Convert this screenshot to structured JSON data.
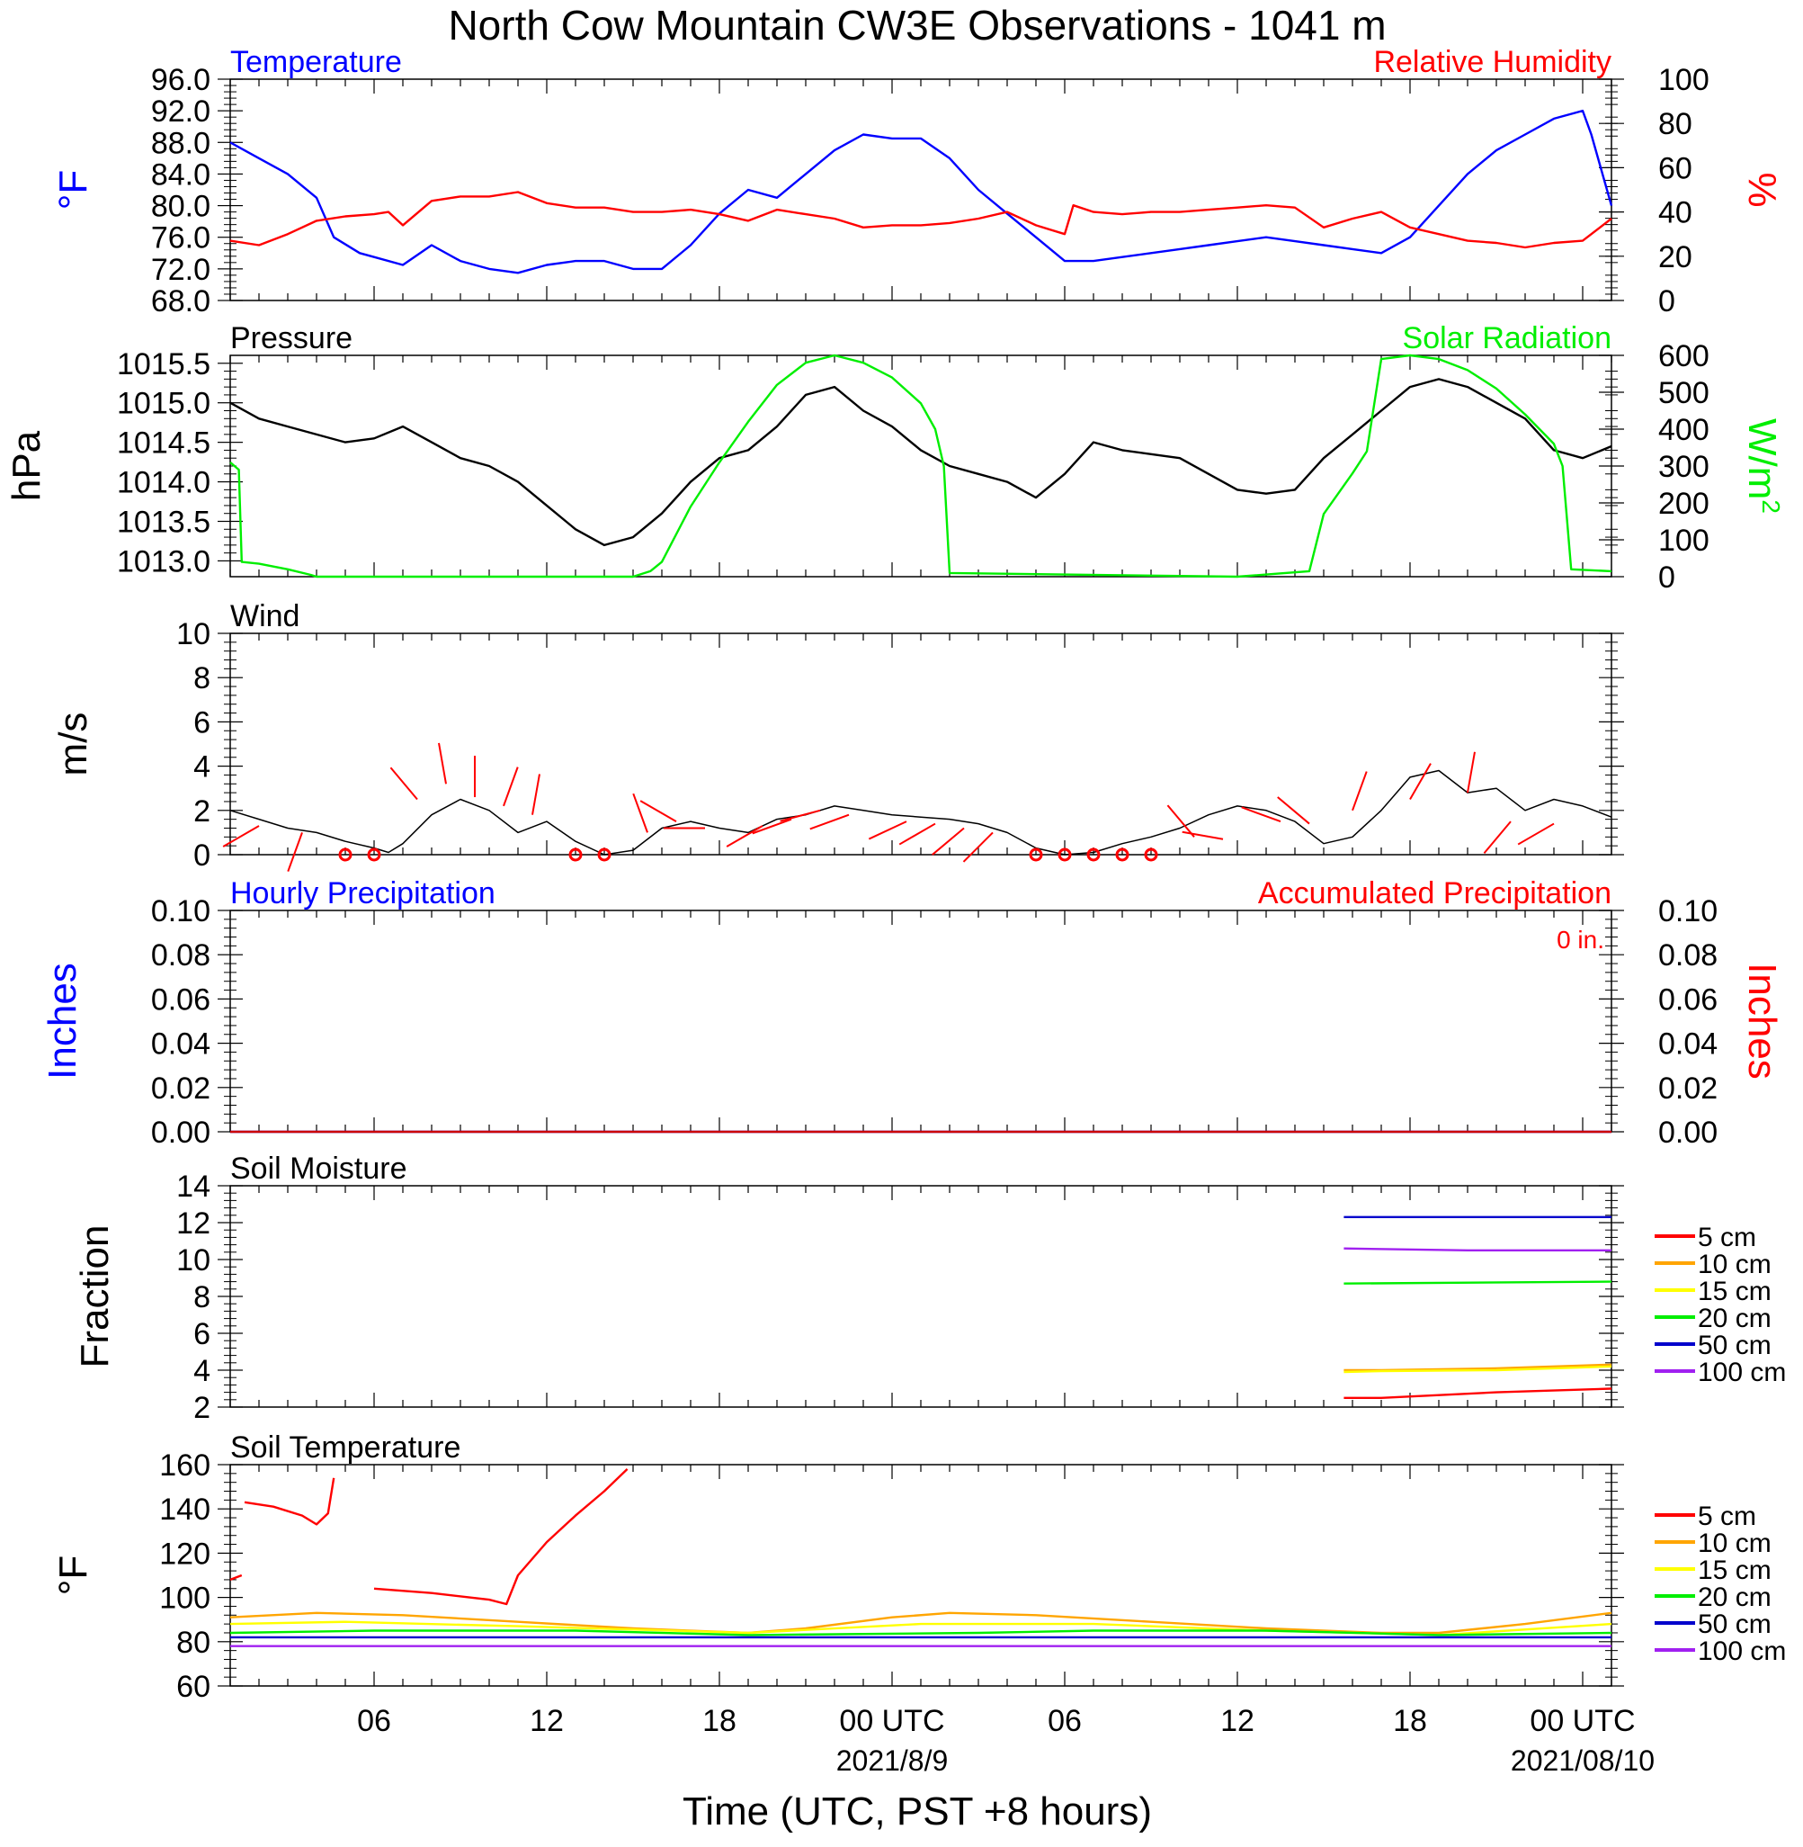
{
  "title": "North Cow Mountain CW3E Observations - 1041 m",
  "x_axis": {
    "label": "Time (UTC, PST +8 hours)",
    "range_hours": [
      0,
      48
    ],
    "major_tick_labels": [
      {
        "hour": 5,
        "label": "06",
        "date": ""
      },
      {
        "hour": 11,
        "label": "12",
        "date": ""
      },
      {
        "hour": 17,
        "label": "18",
        "date": ""
      },
      {
        "hour": 23,
        "label": "00 UTC",
        "date": "2021/8/9"
      },
      {
        "hour": 29,
        "label": "06",
        "date": ""
      },
      {
        "hour": 35,
        "label": "12",
        "date": ""
      },
      {
        "hour": 41,
        "label": "18",
        "date": ""
      },
      {
        "hour": 47,
        "label": "00 UTC",
        "date": "2021/08/10"
      }
    ]
  },
  "colors": {
    "blue": "#0000ff",
    "red": "#ff0000",
    "green": "#00ee00",
    "black": "#000000",
    "orange": "#ffa500",
    "yellow": "#ffff00",
    "navy": "#0000cc",
    "purple": "#a020f0"
  },
  "chart_data": [
    {
      "id": "temp_rh",
      "type": "line",
      "left_title": "Temperature",
      "right_title": "Relative Humidity",
      "left_ylabel": "°F",
      "right_ylabel": "%",
      "left_ylim": [
        68,
        96
      ],
      "left_ticks": [
        "68.0",
        "72.0",
        "76.0",
        "80.0",
        "84.0",
        "88.0",
        "92.0",
        "96.0"
      ],
      "right_ylim": [
        0,
        100
      ],
      "right_ticks": [
        "0",
        "20",
        "40",
        "60",
        "80",
        "100"
      ],
      "series": [
        {
          "name": "Temperature",
          "axis": "left",
          "color": "#0000ff",
          "x": [
            0,
            1,
            2,
            3,
            3.6,
            4.5,
            5,
            6,
            7,
            8,
            9,
            10,
            11,
            12,
            13,
            14,
            15,
            16,
            17,
            18,
            19,
            20,
            21,
            22,
            23,
            24,
            25,
            26,
            27,
            28,
            29,
            30,
            31,
            32,
            33,
            34,
            35,
            36,
            37,
            38,
            39,
            40,
            41,
            42,
            43,
            44,
            45,
            46,
            47,
            47.3,
            48
          ],
          "y": [
            88,
            86,
            84,
            81,
            76,
            74,
            73.5,
            72.5,
            75,
            73,
            72,
            71.5,
            72.5,
            73,
            73,
            72,
            72,
            75,
            79,
            82,
            81,
            84,
            87,
            89,
            88.5,
            88.5,
            86,
            82,
            79,
            76,
            73,
            73,
            73.5,
            74,
            74.5,
            75,
            75.5,
            76,
            75.5,
            75,
            74.5,
            74,
            76,
            80,
            84,
            87,
            89,
            91,
            92,
            89,
            80
          ]
        },
        {
          "name": "Relative Humidity",
          "axis": "right",
          "color": "#ff0000",
          "x": [
            0,
            1,
            2,
            3,
            4,
            5,
            5.5,
            6,
            7,
            8,
            9,
            10,
            11,
            12,
            13,
            14,
            15,
            16,
            17,
            18,
            19,
            20,
            21,
            22,
            23,
            24,
            25,
            26,
            27,
            28,
            29,
            29.3,
            30,
            31,
            32,
            33,
            34,
            35,
            36,
            37,
            38,
            39,
            40,
            41,
            42,
            43,
            44,
            45,
            46,
            47,
            48
          ],
          "y": [
            27,
            25,
            30,
            36,
            38,
            39,
            40,
            34,
            45,
            47,
            47,
            49,
            44,
            42,
            42,
            40,
            40,
            41,
            39,
            36,
            41,
            39,
            37,
            33,
            34,
            34,
            35,
            37,
            40,
            34,
            30,
            43,
            40,
            39,
            40,
            40,
            41,
            42,
            43,
            42,
            33,
            37,
            40,
            33,
            30,
            27,
            26,
            24,
            26,
            27,
            37
          ]
        }
      ]
    },
    {
      "id": "press_solar",
      "type": "line",
      "left_title": "Pressure",
      "right_title": "Solar Radiation",
      "left_ylabel": "hPa",
      "right_ylabel": "W/m",
      "right_ylabel_sup": "2",
      "left_ylim": [
        1012.8,
        1015.6
      ],
      "left_ticks": [
        "1013.0",
        "1013.5",
        "1014.0",
        "1014.5",
        "1015.0",
        "1015.5"
      ],
      "right_ylim": [
        0,
        600
      ],
      "right_ticks": [
        "0",
        "100",
        "200",
        "300",
        "400",
        "500",
        "600"
      ],
      "series": [
        {
          "name": "Pressure",
          "axis": "left",
          "color": "#000000",
          "x": [
            0,
            1,
            2,
            3,
            4,
            5,
            6,
            7,
            8,
            9,
            10,
            11,
            12,
            13,
            14,
            15,
            16,
            17,
            18,
            19,
            20,
            21,
            22,
            23,
            24,
            25,
            26,
            27,
            28,
            29,
            30,
            31,
            32,
            33,
            34,
            35,
            36,
            37,
            38,
            39,
            40,
            41,
            42,
            43,
            44,
            45,
            46,
            47,
            48
          ],
          "y": [
            1015.0,
            1014.8,
            1014.7,
            1014.6,
            1014.5,
            1014.55,
            1014.7,
            1014.5,
            1014.3,
            1014.2,
            1014.0,
            1013.7,
            1013.4,
            1013.2,
            1013.3,
            1013.6,
            1014.0,
            1014.3,
            1014.4,
            1014.7,
            1015.1,
            1015.2,
            1014.9,
            1014.7,
            1014.4,
            1014.2,
            1014.1,
            1014.0,
            1013.8,
            1014.1,
            1014.5,
            1014.4,
            1014.35,
            1014.3,
            1014.1,
            1013.9,
            1013.85,
            1013.9,
            1014.3,
            1014.6,
            1014.9,
            1015.2,
            1015.3,
            1015.2,
            1015.0,
            1014.8,
            1014.4,
            1014.3,
            1014.45
          ]
        },
        {
          "name": "Solar Radiation",
          "axis": "right",
          "color": "#00ee00",
          "x": [
            0,
            0.3,
            0.4,
            1,
            2,
            2.8,
            3,
            14,
            14.6,
            15,
            16,
            17,
            18,
            19,
            20,
            21,
            22,
            23,
            24,
            24.5,
            24.8,
            25,
            35,
            37.5,
            38,
            39,
            39.5,
            40,
            41,
            42,
            43,
            44,
            45,
            46,
            46.3,
            46.6,
            48
          ],
          "y": [
            310,
            290,
            40,
            35,
            20,
            5,
            0,
            0,
            15,
            40,
            190,
            310,
            420,
            520,
            580,
            600,
            580,
            540,
            470,
            400,
            300,
            10,
            0,
            15,
            170,
            280,
            340,
            590,
            600,
            590,
            560,
            510,
            440,
            360,
            300,
            20,
            15
          ]
        }
      ]
    },
    {
      "id": "wind",
      "type": "line",
      "title": "Wind",
      "left_ylabel": "m/s",
      "left_ylim": [
        0,
        10
      ],
      "left_ticks": [
        "0",
        "2",
        "4",
        "6",
        "8",
        "10"
      ],
      "series": [
        {
          "name": "Wind",
          "axis": "left",
          "color": "#000000",
          "x": [
            0,
            1,
            2,
            3,
            4,
            5,
            5.5,
            6,
            7,
            8,
            9,
            10,
            11,
            12,
            13,
            14,
            15,
            16,
            17,
            18,
            19,
            20,
            21,
            22,
            23,
            24,
            25,
            26,
            27,
            28,
            29,
            30,
            31,
            32,
            33,
            34,
            35,
            36,
            37,
            38,
            39,
            40,
            41,
            42,
            43,
            44,
            45,
            46,
            47,
            48
          ],
          "y": [
            2.0,
            1.6,
            1.2,
            1.0,
            0.6,
            0.3,
            0.1,
            0.5,
            1.8,
            2.5,
            2.0,
            1.0,
            1.5,
            0.6,
            0.0,
            0.2,
            1.2,
            1.5,
            1.2,
            1.0,
            1.6,
            1.8,
            2.2,
            2.0,
            1.8,
            1.7,
            1.6,
            1.4,
            1.0,
            0.3,
            0.0,
            0.1,
            0.5,
            0.8,
            1.2,
            1.8,
            2.2,
            2.0,
            1.5,
            0.5,
            0.8,
            2.0,
            3.5,
            3.8,
            2.8,
            3.0,
            2.0,
            2.5,
            2.2,
            1.7
          ]
        }
      ],
      "calm_marker_hours": [
        4,
        5,
        12,
        13,
        28,
        29,
        30,
        31,
        32
      ],
      "barbs": [
        {
          "h": 1,
          "spd": 1.3,
          "dir": 240
        },
        {
          "h": 2.5,
          "spd": 1.0,
          "dir": 200
        },
        {
          "h": 6.5,
          "spd": 2.5,
          "dir": 320
        },
        {
          "h": 7.5,
          "spd": 3.2,
          "dir": 350
        },
        {
          "h": 8.5,
          "spd": 2.6,
          "dir": 360
        },
        {
          "h": 9.5,
          "spd": 2.2,
          "dir": 20
        },
        {
          "h": 10.5,
          "spd": 1.8,
          "dir": 10
        },
        {
          "h": 14.5,
          "spd": 1.0,
          "dir": 340
        },
        {
          "h": 15.5,
          "spd": 1.5,
          "dir": 300
        },
        {
          "h": 16.5,
          "spd": 1.2,
          "dir": 270
        },
        {
          "h": 18.5,
          "spd": 1.3,
          "dir": 240
        },
        {
          "h": 19.5,
          "spd": 1.6,
          "dir": 250
        },
        {
          "h": 20.5,
          "spd": 2.0,
          "dir": 255
        },
        {
          "h": 21.5,
          "spd": 1.8,
          "dir": 250
        },
        {
          "h": 23.5,
          "spd": 1.5,
          "dir": 245
        },
        {
          "h": 24.5,
          "spd": 1.4,
          "dir": 240
        },
        {
          "h": 25.5,
          "spd": 1.2,
          "dir": 230
        },
        {
          "h": 26.5,
          "spd": 1.0,
          "dir": 225
        },
        {
          "h": 33.5,
          "spd": 0.8,
          "dir": 320
        },
        {
          "h": 34.5,
          "spd": 0.7,
          "dir": 280
        },
        {
          "h": 36.5,
          "spd": 1.5,
          "dir": 290
        },
        {
          "h": 37.5,
          "spd": 1.4,
          "dir": 310
        },
        {
          "h": 39,
          "spd": 2.0,
          "dir": 20
        },
        {
          "h": 41,
          "spd": 2.5,
          "dir": 30
        },
        {
          "h": 43,
          "spd": 2.8,
          "dir": 10
        },
        {
          "h": 44.5,
          "spd": 1.5,
          "dir": 220
        },
        {
          "h": 46,
          "spd": 1.4,
          "dir": 240
        }
      ]
    },
    {
      "id": "precip",
      "type": "line",
      "left_title": "Hourly Precipitation",
      "right_title": "Accumulated Precipitation",
      "annotation": "0 in.",
      "left_ylabel": "Inches",
      "right_ylabel": "Inches",
      "left_ylim": [
        0,
        0.1
      ],
      "left_ticks": [
        "0.00",
        "0.02",
        "0.04",
        "0.06",
        "0.08",
        "0.10"
      ],
      "right_ylim": [
        0,
        0.1
      ],
      "right_ticks": [
        "0.00",
        "0.02",
        "0.04",
        "0.06",
        "0.08",
        "0.10"
      ],
      "series": [
        {
          "name": "Hourly Precipitation",
          "axis": "left",
          "color": "#0000ff",
          "x": [
            0,
            48
          ],
          "y": [
            0,
            0
          ]
        },
        {
          "name": "Accumulated Precipitation",
          "axis": "right",
          "color": "#cc0000",
          "x": [
            0,
            48
          ],
          "y": [
            0,
            0
          ]
        }
      ]
    },
    {
      "id": "soil_moist",
      "type": "line",
      "title": "Soil Moisture",
      "left_ylabel": "Fraction",
      "left_ylim": [
        2,
        14
      ],
      "left_ticks": [
        "2",
        "4",
        "6",
        "8",
        "10",
        "12",
        "14"
      ],
      "legend": [
        "5 cm",
        "10 cm",
        "15 cm",
        "20 cm",
        "50 cm",
        "100 cm"
      ],
      "series": [
        {
          "name": "5 cm",
          "color": "#ff0000",
          "x": [
            38.7,
            40,
            44,
            48
          ],
          "y": [
            2.5,
            2.5,
            2.8,
            3.0
          ]
        },
        {
          "name": "10 cm",
          "color": "#ffa500",
          "x": [
            38.7,
            40,
            44,
            48
          ],
          "y": [
            4.0,
            4.0,
            4.1,
            4.3
          ]
        },
        {
          "name": "15 cm",
          "color": "#ffff00",
          "x": [
            38.7,
            40,
            44,
            48
          ],
          "y": [
            3.9,
            3.95,
            4.0,
            4.2
          ]
        },
        {
          "name": "20 cm",
          "color": "#00ee00",
          "x": [
            38.7,
            48
          ],
          "y": [
            8.7,
            8.8
          ]
        },
        {
          "name": "50 cm",
          "color": "#0000cc",
          "x": [
            38.7,
            48
          ],
          "y": [
            12.3,
            12.3
          ]
        },
        {
          "name": "100 cm",
          "color": "#a020f0",
          "x": [
            38.7,
            43,
            48
          ],
          "y": [
            10.6,
            10.5,
            10.5
          ]
        }
      ]
    },
    {
      "id": "soil_temp",
      "type": "line",
      "title": "Soil Temperature",
      "left_ylabel": "°F",
      "left_ylim": [
        60,
        160
      ],
      "left_ticks": [
        "60",
        "80",
        "100",
        "120",
        "140",
        "160"
      ],
      "legend": [
        "5 cm",
        "10 cm",
        "15 cm",
        "20 cm",
        "50 cm",
        "100 cm"
      ],
      "series": [
        {
          "name": "5 cm",
          "color": "#ff0000",
          "x": [
            0,
            0.4,
            null,
            0.5,
            1.5,
            2.5,
            3.0,
            3.4,
            3.6,
            null,
            5,
            7,
            9,
            9.6,
            10,
            11,
            12,
            13,
            13.8
          ],
          "y": [
            108,
            110,
            null,
            143,
            141,
            137,
            133,
            138,
            154,
            null,
            104,
            102,
            99,
            97,
            110,
            125,
            137,
            148,
            158
          ]
        },
        {
          "name": "10 cm",
          "color": "#ffa500",
          "x": [
            0,
            3,
            6,
            10,
            14,
            18,
            20,
            23,
            25,
            28,
            32,
            36,
            40,
            42,
            45,
            48
          ],
          "y": [
            91,
            93,
            92,
            89,
            86,
            84,
            86,
            91,
            93,
            92,
            89,
            86,
            84,
            84,
            88,
            93
          ]
        },
        {
          "name": "15 cm",
          "color": "#ffff00",
          "x": [
            0,
            4,
            10,
            18,
            24,
            30,
            36,
            42,
            48
          ],
          "y": [
            88,
            89,
            87,
            84,
            88,
            88,
            85,
            83,
            88
          ]
        },
        {
          "name": "20 cm",
          "color": "#00ee00",
          "x": [
            0,
            5,
            12,
            18,
            26,
            30,
            36,
            42,
            48
          ],
          "y": [
            84,
            85,
            85,
            83,
            84,
            85,
            85,
            83,
            84
          ]
        },
        {
          "name": "50 cm",
          "color": "#0000cc",
          "x": [
            0,
            48
          ],
          "y": [
            82,
            82
          ]
        },
        {
          "name": "100 cm",
          "color": "#a020f0",
          "x": [
            0,
            48
          ],
          "y": [
            78,
            78
          ]
        }
      ]
    }
  ]
}
